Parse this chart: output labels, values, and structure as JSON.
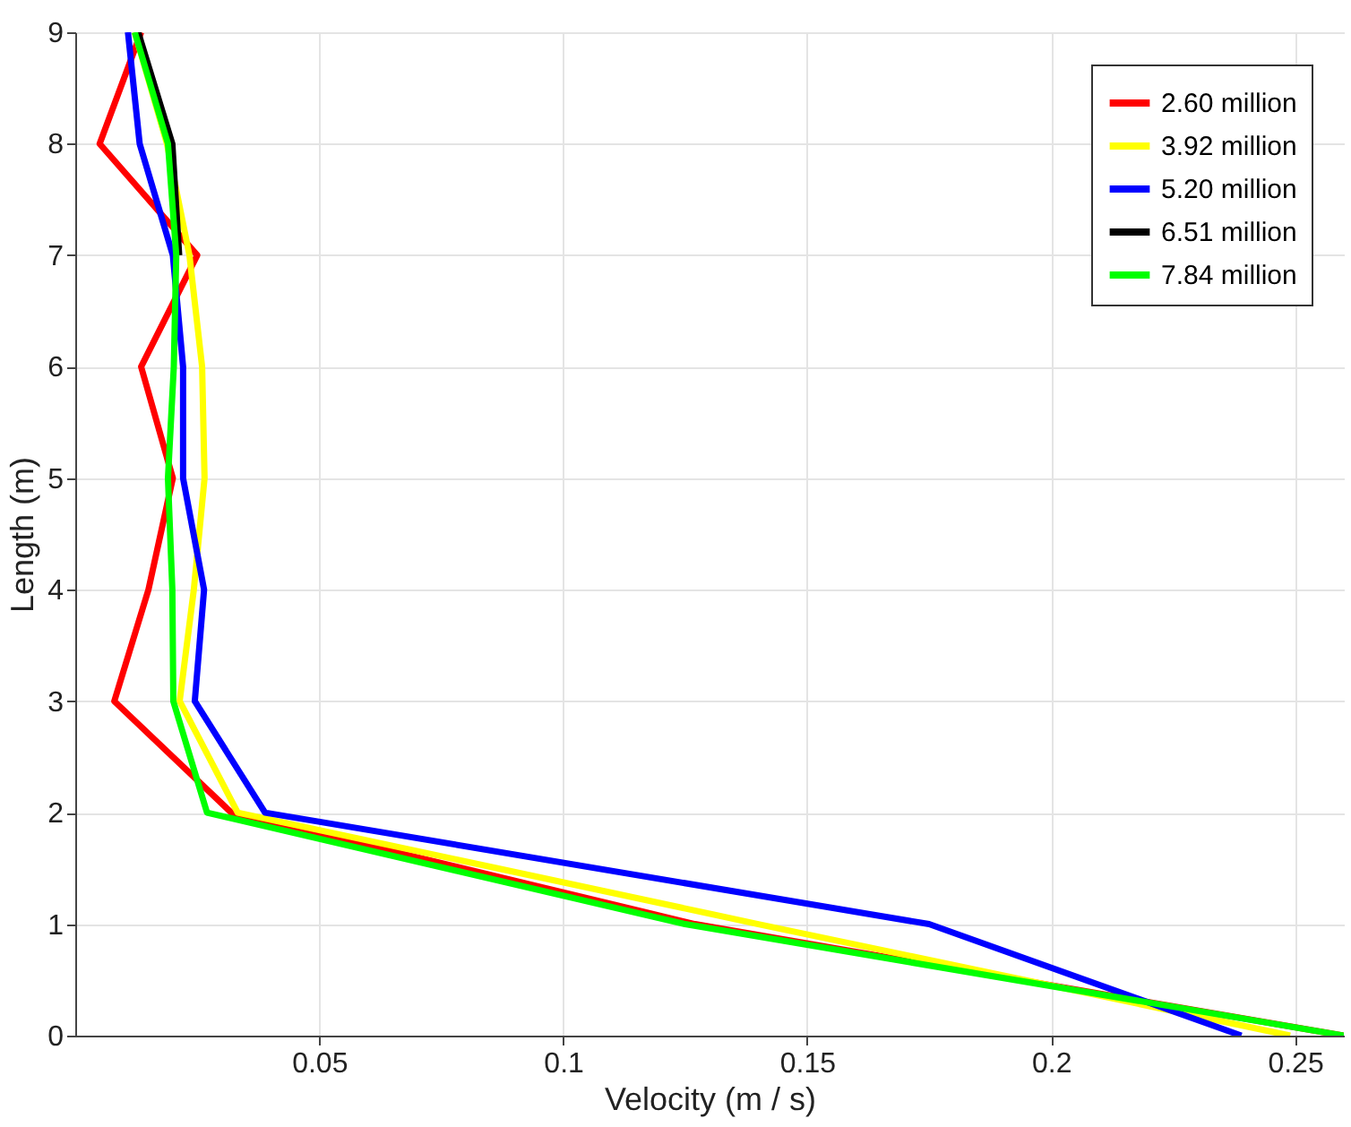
{
  "chart_data": {
    "type": "line",
    "xlabel": "Velocity (m / s)",
    "ylabel": "Length (m)",
    "xlim": [
      0,
      0.26
    ],
    "xticks": [
      0.05,
      0.1,
      0.15,
      0.2,
      0.25
    ],
    "ylim": [
      0,
      9
    ],
    "yticks": [
      0,
      1,
      2,
      3,
      4,
      5,
      6,
      7,
      8,
      9
    ],
    "grid": true,
    "legend": "top right",
    "series": [
      {
        "name": "2.60 million",
        "color": "#ff0000",
        "x": [
          0.26,
          0.127,
          0.032,
          0.008,
          0.015,
          0.02,
          0.0135,
          0.025,
          0.005,
          0.0135
        ],
        "values": [
          0,
          1,
          2,
          3,
          4,
          5,
          6,
          7,
          8,
          9
        ]
      },
      {
        "name": "3.92 million",
        "color": "#ffff00",
        "x": [
          0.249,
          0.14,
          0.0333,
          0.0214,
          0.0243,
          0.0265,
          0.026,
          0.0234,
          0.0188,
          0.0122
        ],
        "values": [
          0,
          1,
          2,
          3,
          4,
          5,
          6,
          7,
          8,
          9
        ]
      },
      {
        "name": "5.20 million",
        "color": "#0000ff",
        "x": [
          0.239,
          0.175,
          0.0389,
          0.0245,
          0.0264,
          0.0221,
          0.0221,
          0.02,
          0.0132,
          0.0108
        ],
        "values": [
          0,
          1,
          2,
          3,
          4,
          5,
          6,
          7,
          8,
          9
        ]
      },
      {
        "name": "6.51 million",
        "color": "#000000",
        "x": [
          null,
          null,
          null,
          null,
          null,
          null,
          null,
          0.0213,
          0.0199,
          0.0129
        ],
        "values": [
          null,
          null,
          null,
          null,
          null,
          null,
          null,
          7,
          8,
          9
        ]
      },
      {
        "name": "7.84 million",
        "color": "#00ff00",
        "x": [
          0.26,
          0.125,
          0.027,
          0.0201,
          0.0199,
          0.019,
          0.0202,
          0.0207,
          0.019,
          0.0122
        ],
        "values": [
          0,
          1,
          2,
          3,
          4,
          5,
          6,
          7,
          8,
          9
        ]
      }
    ]
  }
}
